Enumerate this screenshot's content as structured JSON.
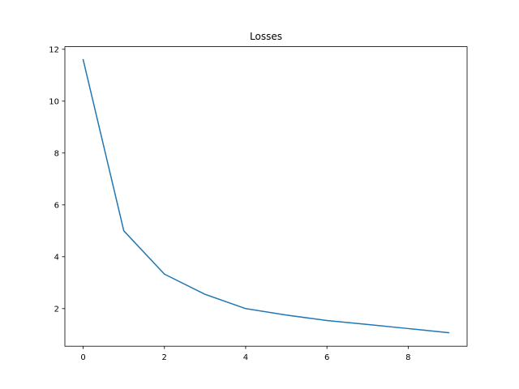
{
  "chart_data": {
    "type": "line",
    "title": "Losses",
    "xlabel": "",
    "ylabel": "",
    "xlim": [
      -0.45,
      9.45
    ],
    "ylim": [
      0.55,
      12.1
    ],
    "xticks": [
      0,
      2,
      4,
      6,
      8
    ],
    "yticks": [
      2,
      4,
      6,
      8,
      10,
      12
    ],
    "grid": false,
    "legend": "none",
    "series": [
      {
        "color": "#1f77b4",
        "x": [
          0,
          1,
          2,
          3,
          4,
          5,
          6,
          7,
          8,
          9
        ],
        "y": [
          11.6,
          5.0,
          3.33,
          2.55,
          2.0,
          1.75,
          1.54,
          1.39,
          1.23,
          1.07
        ]
      }
    ]
  }
}
